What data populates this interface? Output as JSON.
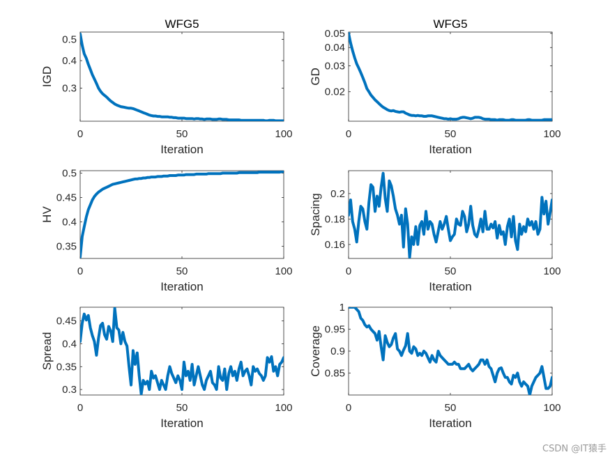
{
  "colors": {
    "line": "#0072BD",
    "axis": "#262626",
    "background": "#ffffff"
  },
  "watermark": "CSDN @IT猿手",
  "chart_data": [
    {
      "type": "line",
      "title": "WFG5",
      "xlabel": "Iteration",
      "ylabel": "IGD",
      "yscale": "log",
      "xlim": [
        0,
        100
      ],
      "ylim": [
        0.212,
        0.54
      ],
      "xticks": [
        0,
        50,
        100
      ],
      "yticks": [
        0.3,
        0.4,
        0.5
      ],
      "ytick_labels": [
        "0.3",
        "0.4",
        "0.5"
      ],
      "series": [
        {
          "name": "IGD",
          "values": [
            0.53,
            0.47,
            0.43,
            0.41,
            0.385,
            0.365,
            0.345,
            0.33,
            0.315,
            0.3,
            0.29,
            0.283,
            0.278,
            0.273,
            0.267,
            0.262,
            0.258,
            0.254,
            0.251,
            0.249,
            0.247,
            0.246,
            0.245,
            0.244,
            0.243,
            0.243,
            0.242,
            0.24,
            0.238,
            0.236,
            0.234,
            0.232,
            0.23,
            0.228,
            0.226,
            0.225,
            0.224,
            0.224,
            0.223,
            0.223,
            0.222,
            0.222,
            0.222,
            0.222,
            0.221,
            0.221,
            0.22,
            0.22,
            0.219,
            0.219,
            0.219,
            0.219,
            0.218,
            0.218,
            0.218,
            0.218,
            0.217,
            0.218,
            0.218,
            0.217,
            0.217,
            0.216,
            0.217,
            0.217,
            0.217,
            0.216,
            0.216,
            0.216,
            0.217,
            0.217,
            0.216,
            0.216,
            0.216,
            0.215,
            0.215,
            0.215,
            0.215,
            0.215,
            0.215,
            0.214,
            0.214,
            0.214,
            0.214,
            0.214,
            0.214,
            0.214,
            0.214,
            0.214,
            0.214,
            0.214,
            0.214,
            0.213,
            0.213,
            0.214,
            0.214,
            0.214,
            0.213,
            0.213,
            0.213,
            0.213,
            0.213
          ]
        }
      ]
    },
    {
      "type": "line",
      "title": "WFG5",
      "xlabel": "Iteration",
      "ylabel": "GD",
      "yscale": "log",
      "xlim": [
        0,
        100
      ],
      "ylim": [
        0.0126,
        0.051
      ],
      "xticks": [
        0,
        50,
        100
      ],
      "yticks": [
        0.02,
        0.03,
        0.04,
        0.05
      ],
      "ytick_labels": [
        "0.02",
        "0.03",
        "0.04",
        "0.05"
      ],
      "series": [
        {
          "name": "GD",
          "values": [
            0.05,
            0.043,
            0.038,
            0.034,
            0.031,
            0.029,
            0.027,
            0.025,
            0.023,
            0.021,
            0.02,
            0.019,
            0.0183,
            0.0176,
            0.0171,
            0.0166,
            0.0161,
            0.0157,
            0.0154,
            0.0151,
            0.0149,
            0.0148,
            0.0149,
            0.0147,
            0.0146,
            0.0145,
            0.0146,
            0.0146,
            0.0143,
            0.0141,
            0.0139,
            0.0138,
            0.0138,
            0.0137,
            0.0138,
            0.0137,
            0.0137,
            0.0136,
            0.0136,
            0.0137,
            0.0137,
            0.0137,
            0.0136,
            0.0135,
            0.0134,
            0.0133,
            0.0132,
            0.0131,
            0.0131,
            0.013,
            0.0131,
            0.013,
            0.013,
            0.013,
            0.0131,
            0.0133,
            0.0134,
            0.0134,
            0.0133,
            0.0132,
            0.0131,
            0.0132,
            0.0134,
            0.0134,
            0.0134,
            0.0133,
            0.0131,
            0.013,
            0.013,
            0.013,
            0.0129,
            0.0129,
            0.0129,
            0.0128,
            0.0129,
            0.0129,
            0.0129,
            0.0128,
            0.0128,
            0.0128,
            0.0129,
            0.0129,
            0.0128,
            0.0128,
            0.0128,
            0.0128,
            0.0128,
            0.0128,
            0.0129,
            0.0129,
            0.0128,
            0.0128,
            0.0128,
            0.0128,
            0.0128,
            0.0128,
            0.0129,
            0.0129,
            0.0129,
            0.0129,
            0.0129
          ]
        }
      ]
    },
    {
      "type": "line",
      "title": "",
      "xlabel": "Iteration",
      "ylabel": "HV",
      "yscale": "linear",
      "xlim": [
        0,
        100
      ],
      "ylim": [
        0.325,
        0.505
      ],
      "xticks": [
        0,
        50,
        100
      ],
      "yticks": [
        0.35,
        0.4,
        0.45,
        0.5
      ],
      "ytick_labels": [
        "0.35",
        "0.4",
        "0.45",
        "0.5"
      ],
      "series": [
        {
          "name": "HV",
          "values": [
            0.328,
            0.37,
            0.39,
            0.41,
            0.425,
            0.435,
            0.445,
            0.452,
            0.457,
            0.461,
            0.464,
            0.467,
            0.469,
            0.471,
            0.473,
            0.475,
            0.477,
            0.478,
            0.479,
            0.48,
            0.481,
            0.482,
            0.483,
            0.484,
            0.485,
            0.486,
            0.487,
            0.488,
            0.488,
            0.489,
            0.489,
            0.49,
            0.49,
            0.491,
            0.491,
            0.492,
            0.492,
            0.492,
            0.493,
            0.493,
            0.493,
            0.494,
            0.494,
            0.494,
            0.495,
            0.495,
            0.495,
            0.495,
            0.496,
            0.496,
            0.496,
            0.496,
            0.497,
            0.497,
            0.497,
            0.497,
            0.497,
            0.498,
            0.498,
            0.498,
            0.498,
            0.498,
            0.498,
            0.499,
            0.499,
            0.499,
            0.499,
            0.499,
            0.499,
            0.499,
            0.5,
            0.5,
            0.5,
            0.5,
            0.5,
            0.5,
            0.5,
            0.5,
            0.501,
            0.501,
            0.501,
            0.501,
            0.501,
            0.501,
            0.501,
            0.501,
            0.501,
            0.501,
            0.502,
            0.502,
            0.502,
            0.502,
            0.502,
            0.502,
            0.502,
            0.502,
            0.502,
            0.502,
            0.502,
            0.503,
            0.503
          ]
        }
      ]
    },
    {
      "type": "line",
      "title": "",
      "xlabel": "Iteration",
      "ylabel": "Spacing",
      "yscale": "linear",
      "xlim": [
        0,
        100
      ],
      "ylim": [
        0.149,
        0.218
      ],
      "xticks": [
        0,
        50,
        100
      ],
      "yticks": [
        0.16,
        0.18,
        0.2
      ],
      "ytick_labels": [
        "0.16",
        "0.18",
        "0.2"
      ],
      "series": [
        {
          "name": "Spacing",
          "values": [
            0.183,
            0.195,
            0.178,
            0.172,
            0.162,
            0.178,
            0.19,
            0.188,
            0.178,
            0.172,
            0.193,
            0.207,
            0.205,
            0.186,
            0.198,
            0.19,
            0.205,
            0.216,
            0.196,
            0.186,
            0.21,
            0.206,
            0.198,
            0.188,
            0.183,
            0.176,
            0.183,
            0.158,
            0.188,
            0.176,
            0.15,
            0.166,
            0.16,
            0.174,
            0.16,
            0.175,
            0.178,
            0.168,
            0.186,
            0.172,
            0.178,
            0.176,
            0.168,
            0.162,
            0.17,
            0.178,
            0.172,
            0.176,
            0.182,
            0.172,
            0.163,
            0.166,
            0.168,
            0.18,
            0.176,
            0.175,
            0.186,
            0.182,
            0.17,
            0.176,
            0.19,
            0.175,
            0.168,
            0.166,
            0.172,
            0.18,
            0.17,
            0.186,
            0.172,
            0.172,
            0.176,
            0.173,
            0.178,
            0.165,
            0.175,
            0.168,
            0.17,
            0.16,
            0.174,
            0.18,
            0.166,
            0.182,
            0.163,
            0.156,
            0.176,
            0.168,
            0.174,
            0.17,
            0.18,
            0.175,
            0.178,
            0.172,
            0.178,
            0.168,
            0.172,
            0.197,
            0.184,
            0.194,
            0.176,
            0.185,
            0.195
          ]
        }
      ]
    },
    {
      "type": "line",
      "title": "",
      "xlabel": "Iteration",
      "ylabel": "Spread",
      "yscale": "linear",
      "xlim": [
        0,
        100
      ],
      "ylim": [
        0.288,
        0.48
      ],
      "xticks": [
        0,
        50,
        100
      ],
      "yticks": [
        0.3,
        0.35,
        0.4,
        0.45
      ],
      "ytick_labels": [
        "0.3",
        "0.35",
        "0.4",
        "0.45"
      ],
      "series": [
        {
          "name": "Spread",
          "values": [
            0.405,
            0.445,
            0.465,
            0.452,
            0.462,
            0.435,
            0.418,
            0.405,
            0.375,
            0.412,
            0.44,
            0.445,
            0.42,
            0.41,
            0.438,
            0.428,
            0.405,
            0.478,
            0.435,
            0.43,
            0.4,
            0.425,
            0.405,
            0.395,
            0.35,
            0.31,
            0.385,
            0.355,
            0.38,
            0.33,
            0.29,
            0.32,
            0.312,
            0.318,
            0.3,
            0.34,
            0.325,
            0.33,
            0.315,
            0.3,
            0.32,
            0.31,
            0.3,
            0.33,
            0.35,
            0.335,
            0.325,
            0.315,
            0.33,
            0.32,
            0.3,
            0.36,
            0.33,
            0.34,
            0.32,
            0.355,
            0.31,
            0.33,
            0.35,
            0.33,
            0.31,
            0.3,
            0.32,
            0.33,
            0.34,
            0.315,
            0.31,
            0.3,
            0.35,
            0.325,
            0.32,
            0.345,
            0.3,
            0.335,
            0.35,
            0.33,
            0.34,
            0.32,
            0.345,
            0.36,
            0.33,
            0.34,
            0.345,
            0.33,
            0.31,
            0.35,
            0.34,
            0.345,
            0.335,
            0.33,
            0.32,
            0.33,
            0.37,
            0.36,
            0.372,
            0.34,
            0.35,
            0.33,
            0.355,
            0.36,
            0.37
          ]
        }
      ]
    },
    {
      "type": "line",
      "title": "",
      "xlabel": "Iteration",
      "ylabel": "Coverage",
      "yscale": "linear",
      "xlim": [
        0,
        100
      ],
      "ylim": [
        0.8,
        1.0
      ],
      "xticks": [
        0,
        50,
        100
      ],
      "yticks": [
        0.85,
        0.9,
        0.95,
        1.0
      ],
      "ytick_labels": [
        "0.85",
        "0.9",
        "0.95",
        "1"
      ],
      "series": [
        {
          "name": "Coverage",
          "values": [
            1.0,
            1.0,
            1.0,
            1.0,
            0.995,
            0.99,
            0.975,
            0.97,
            0.96,
            0.955,
            0.958,
            0.95,
            0.945,
            0.94,
            0.925,
            0.945,
            0.91,
            0.88,
            0.935,
            0.92,
            0.91,
            0.915,
            0.93,
            0.94,
            0.905,
            0.9,
            0.89,
            0.902,
            0.912,
            0.94,
            0.9,
            0.895,
            0.91,
            0.905,
            0.89,
            0.895,
            0.89,
            0.9,
            0.895,
            0.885,
            0.875,
            0.89,
            0.88,
            0.875,
            0.9,
            0.89,
            0.885,
            0.88,
            0.875,
            0.87,
            0.87,
            0.87,
            0.875,
            0.87,
            0.87,
            0.86,
            0.86,
            0.86,
            0.865,
            0.87,
            0.86,
            0.855,
            0.86,
            0.865,
            0.87,
            0.88,
            0.88,
            0.87,
            0.88,
            0.865,
            0.86,
            0.845,
            0.83,
            0.85,
            0.86,
            0.862,
            0.85,
            0.84,
            0.84,
            0.83,
            0.825,
            0.845,
            0.84,
            0.85,
            0.83,
            0.82,
            0.83,
            0.825,
            0.82,
            0.8,
            0.82,
            0.83,
            0.84,
            0.845,
            0.85,
            0.865,
            0.84,
            0.815,
            0.815,
            0.82,
            0.84
          ]
        }
      ]
    }
  ]
}
